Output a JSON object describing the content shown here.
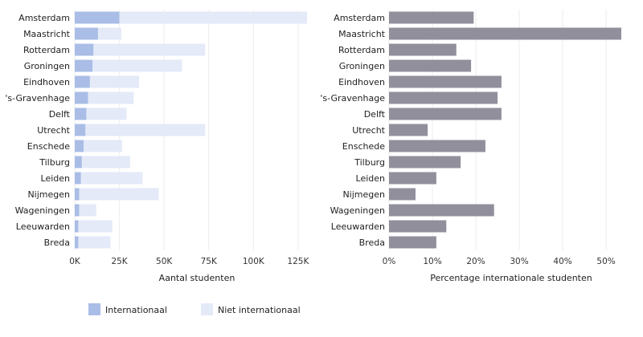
{
  "chart_data": [
    {
      "type": "bar",
      "orientation": "horizontal",
      "stacked": true,
      "categories": [
        "Amsterdam",
        "Maastricht",
        "Rotterdam",
        "Groningen",
        "Eindhoven",
        "'s-Gravenhage",
        "Delft",
        "Utrecht",
        "Enschede",
        "Tilburg",
        "Leiden",
        "Nijmegen",
        "Wageningen",
        "Leeuwarden",
        "Breda"
      ],
      "series": [
        {
          "name": "Internationaal",
          "color": "#a9bde6",
          "values": [
            25000,
            13000,
            10500,
            10000,
            8500,
            7500,
            6500,
            6000,
            5000,
            4000,
            3500,
            2500,
            2500,
            2000,
            2000
          ]
        },
        {
          "name": "Niet internationaal",
          "color": "#e4eaf8",
          "values": [
            105000,
            13000,
            62500,
            50000,
            27500,
            25500,
            22500,
            67000,
            21500,
            27000,
            34500,
            44500,
            9500,
            19000,
            18000
          ]
        }
      ],
      "xlabel": "Aantal studenten",
      "xlim": [
        0,
        135000
      ],
      "xticks": [
        0,
        25000,
        50000,
        75000,
        100000,
        125000
      ],
      "xtick_labels": [
        "0K",
        "25K",
        "50K",
        "75K",
        "100K",
        "125K"
      ],
      "grid": true,
      "legend": "bottom-left"
    },
    {
      "type": "bar",
      "orientation": "horizontal",
      "categories": [
        "Amsterdam",
        "Maastricht",
        "Rotterdam",
        "Groningen",
        "Eindhoven",
        "'s-Gravenhage",
        "Delft",
        "Utrecht",
        "Enschede",
        "Tilburg",
        "Leiden",
        "Nijmegen",
        "Wageningen",
        "Leeuwarden",
        "Breda"
      ],
      "values": [
        19.5,
        53.5,
        15.5,
        18.9,
        25.9,
        25.0,
        25.9,
        8.9,
        22.2,
        16.5,
        10.9,
        6.1,
        24.2,
        13.2,
        10.9
      ],
      "color": "#918f9c",
      "xlabel": "Percentage internationale studenten",
      "xlim": [
        0,
        55
      ],
      "xticks": [
        0,
        10,
        20,
        30,
        40,
        50
      ],
      "xtick_labels": [
        "0%",
        "10%",
        "20%",
        "30%",
        "40%",
        "50%"
      ],
      "grid": true
    }
  ]
}
